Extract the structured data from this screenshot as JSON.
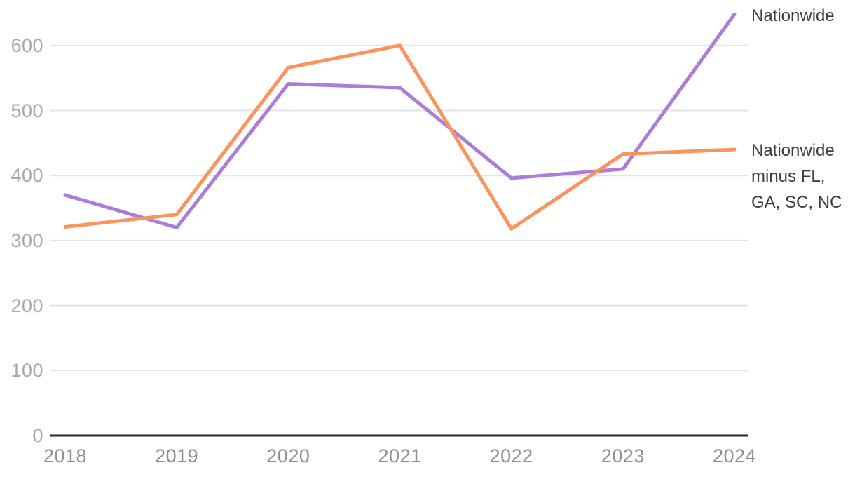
{
  "chart_data": {
    "type": "line",
    "x": [
      2018,
      2019,
      2020,
      2021,
      2022,
      2023,
      2024
    ],
    "xticks": [
      "2018",
      "2019",
      "2020",
      "2021",
      "2022",
      "2023",
      "2024"
    ],
    "yticks": [
      0,
      100,
      200,
      300,
      400,
      500,
      600
    ],
    "ylim": [
      0,
      660
    ],
    "grid": true,
    "legend_position": "right of line endpoints",
    "series": [
      {
        "name": "Nationwide",
        "color": "#ab7dd8",
        "values": [
          370,
          320,
          541,
          535,
          396,
          410,
          648
        ]
      },
      {
        "name": "Nationwide minus FL, GA, SC, NC",
        "color": "#f8945c",
        "values": [
          321,
          340,
          566,
          600,
          318,
          433,
          440
        ]
      }
    ]
  },
  "legend": {
    "nationwide": "Nationwide",
    "nationwide_minus": "Nationwide minus FL, GA, SC, NC"
  },
  "colors": {
    "nationwide_line": "#ab7dd8",
    "nationwide_minus_line": "#f8945c",
    "gridline": "#e4e4e4",
    "axis_line": "#262626",
    "y_tick_text": "#a8a8a8",
    "x_tick_text": "#8f8f8f",
    "legend_text": "#3d3d3d",
    "background": "#ffffff"
  }
}
